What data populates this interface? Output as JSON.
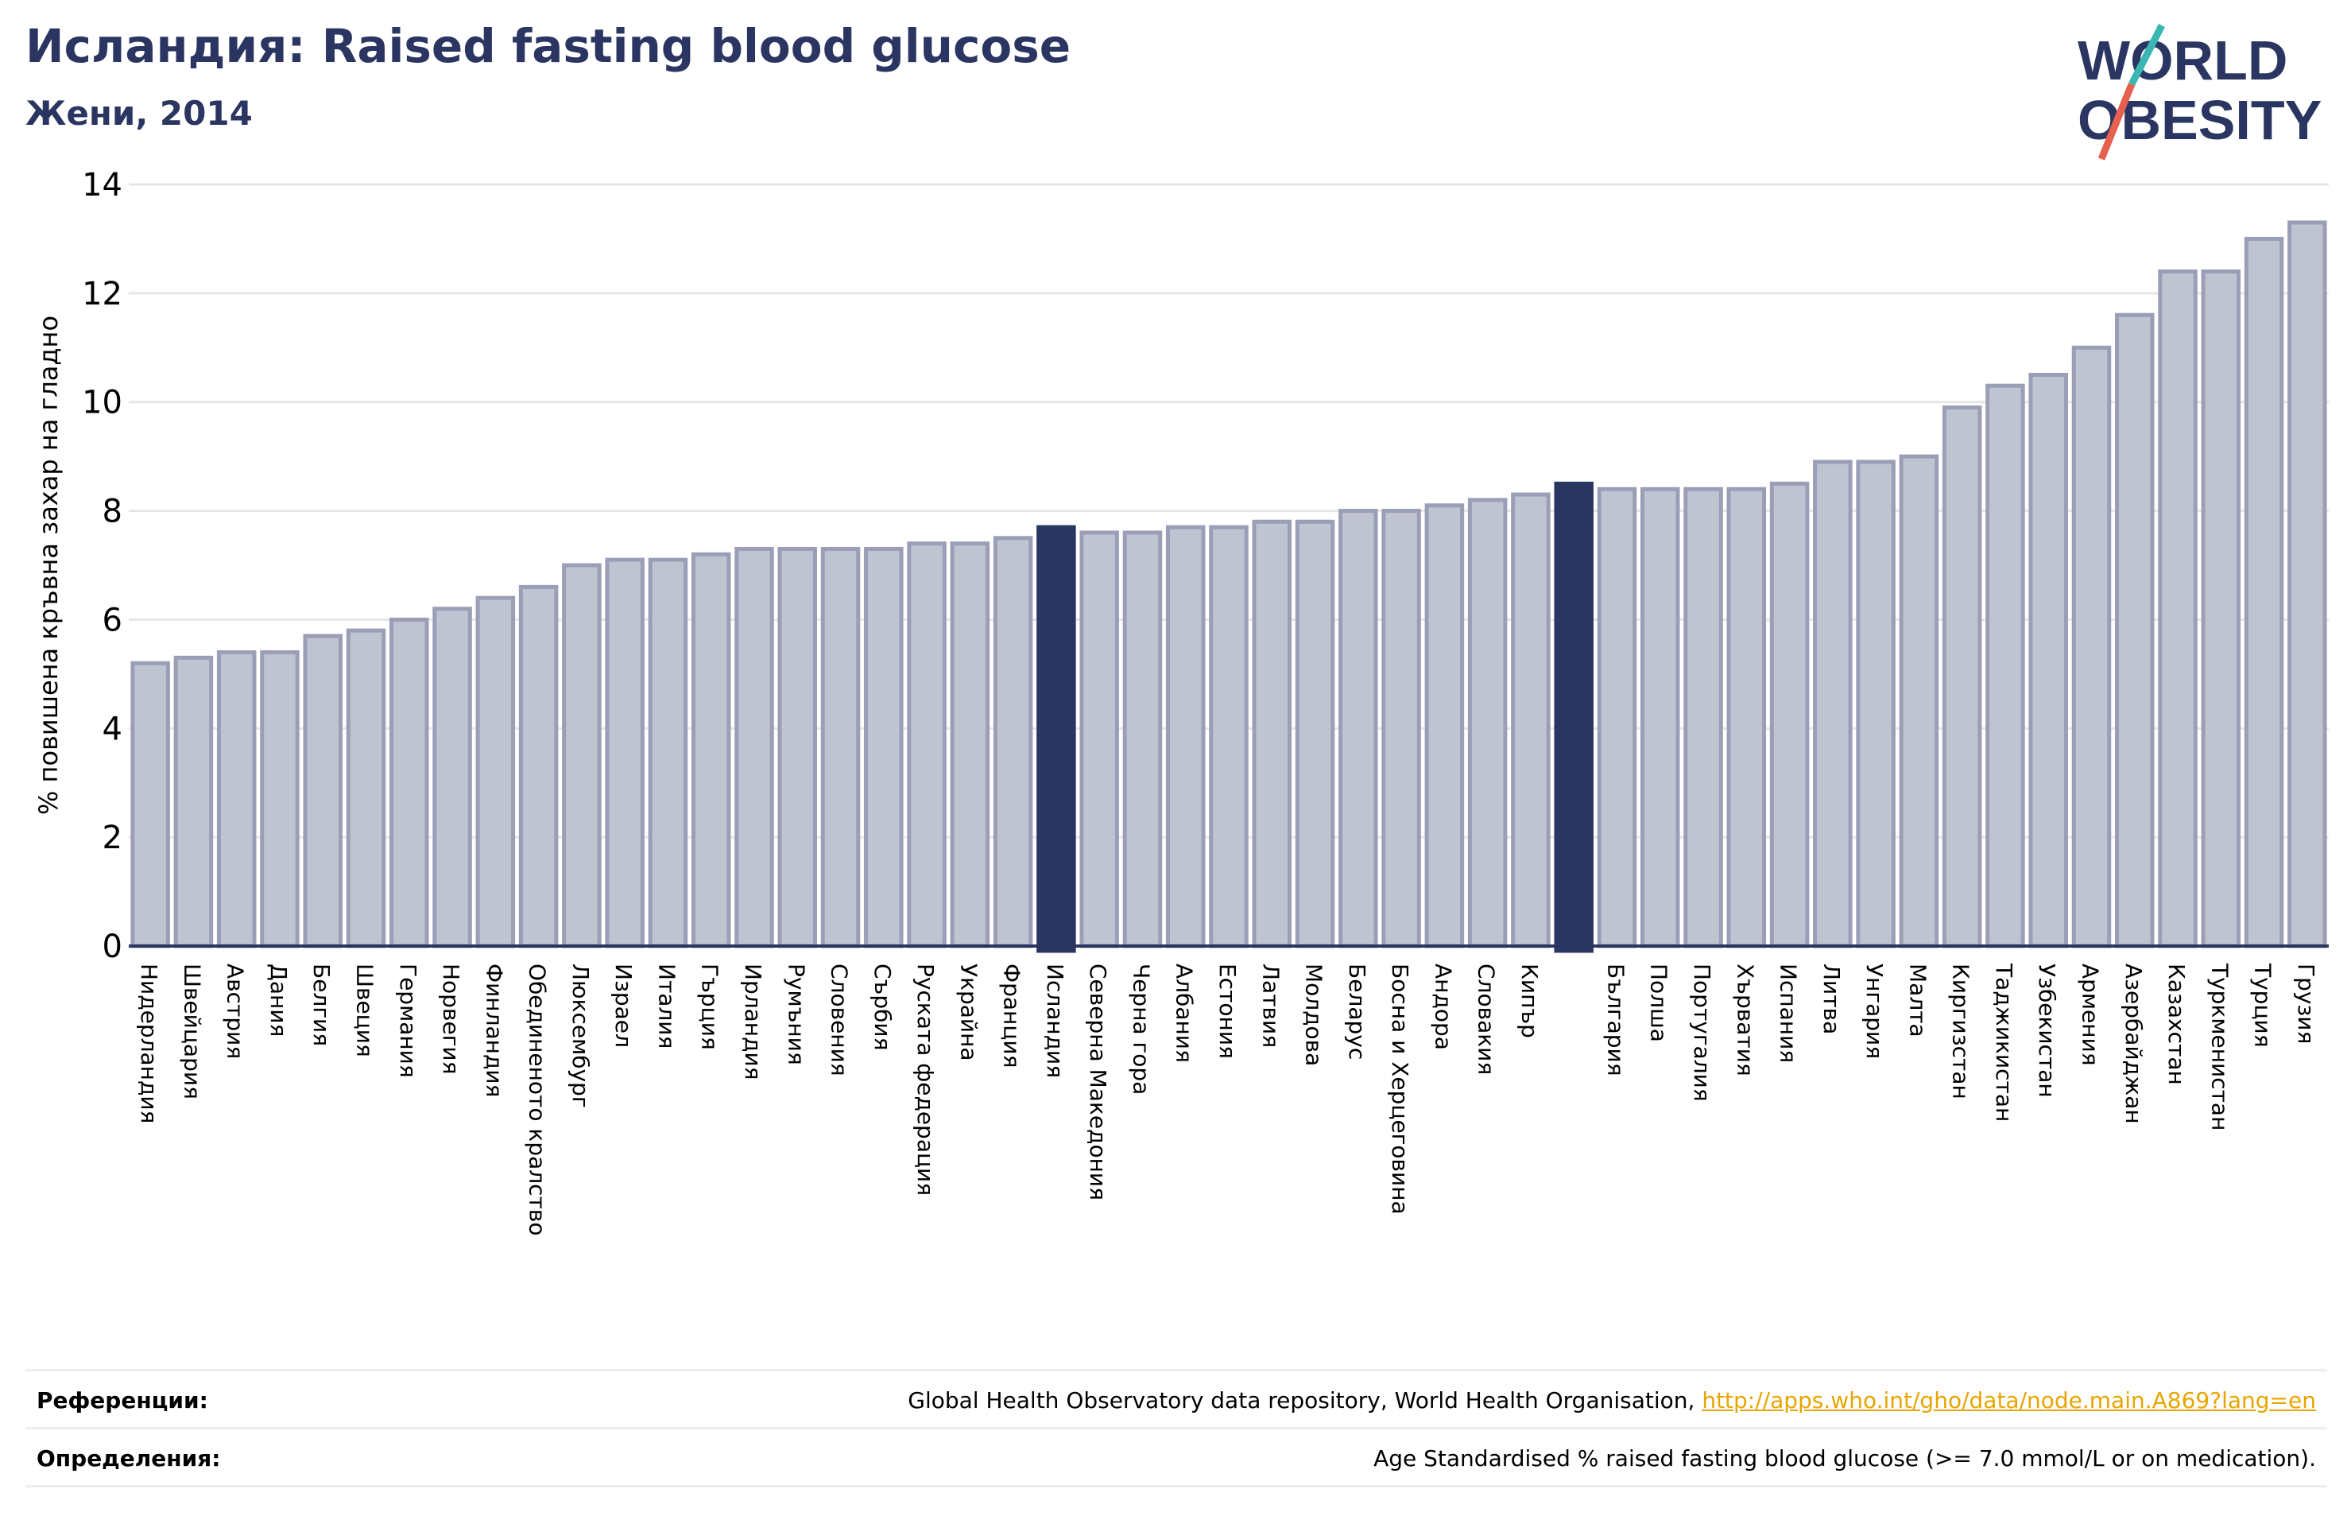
{
  "header": {
    "title": "Исландия: Raised fasting blood glucose",
    "subtitle": "Жени, 2014"
  },
  "logo": {
    "line1": "WORLD",
    "line2": "OBESITY",
    "text_color": "#2b3561",
    "slash_teal": "#3ab7b3",
    "slash_red": "#e5604e"
  },
  "colors": {
    "bar": "#c0c3d0",
    "bar_edge": "#9a9eb6",
    "highlight": "#2b3561",
    "grid": "#e6e6e6",
    "axis": "#2b3561"
  },
  "chart_data": {
    "type": "bar",
    "ylabel": "% повишена кръвна захар на гладно",
    "ylim": [
      0,
      14
    ],
    "yticks": [
      0,
      2,
      4,
      6,
      8,
      10,
      12,
      14
    ],
    "grid": true,
    "categories": [
      "Нидерландия",
      "Швейцария",
      "Австрия",
      "Дания",
      "Белгия",
      "Швеция",
      "Германия",
      "Норвегия",
      "Финландия",
      "Обединеното кралство",
      "Люксембург",
      "Израел",
      "Италия",
      "Гърция",
      "Ирландия",
      "Румъния",
      "Словения",
      "Сърбия",
      "Руската федерация",
      "Украйна",
      "Франция",
      "Исландия",
      "Северна Македония",
      "Черна гора",
      "Албания",
      "Естония",
      "Латвия",
      "Молдова",
      "Беларус",
      "Босна и Херцеговина",
      "Андора",
      "Словакия",
      "Кипър",
      "",
      "България",
      "Полша",
      "Португалия",
      "Хърватия",
      "Испания",
      "Литва",
      "Унгария",
      "Малта",
      "Киргизстан",
      "Таджикистан",
      "Узбекистан",
      "Армения",
      "Азербайджан",
      "Казахстан",
      "Туркменистан",
      "Турция",
      "Грузия"
    ],
    "values": [
      5.2,
      5.3,
      5.4,
      5.4,
      5.7,
      5.8,
      6.0,
      6.2,
      6.4,
      6.6,
      7.0,
      7.1,
      7.1,
      7.2,
      7.3,
      7.3,
      7.3,
      7.3,
      7.4,
      7.4,
      7.5,
      7.7,
      7.6,
      7.6,
      7.7,
      7.7,
      7.8,
      7.8,
      8.0,
      8.0,
      8.1,
      8.2,
      8.3,
      8.5,
      8.4,
      8.4,
      8.4,
      8.4,
      8.5,
      8.9,
      8.9,
      9.0,
      9.9,
      10.3,
      10.5,
      11.0,
      11.6,
      12.4,
      12.4,
      13.0,
      13.3
    ],
    "highlight": [
      "Исландия",
      ""
    ]
  },
  "references": {
    "ref_label": "Референции:",
    "ref_text": "Global Health Observatory data repository, World Health Organisation, ",
    "ref_link": "http://apps.who.int/gho/data/node.main.A869?lang=en",
    "def_label": "Определения:",
    "def_text": "Age Standardised % raised fasting blood glucose (>= 7.0 mmol/L or on medication)."
  }
}
